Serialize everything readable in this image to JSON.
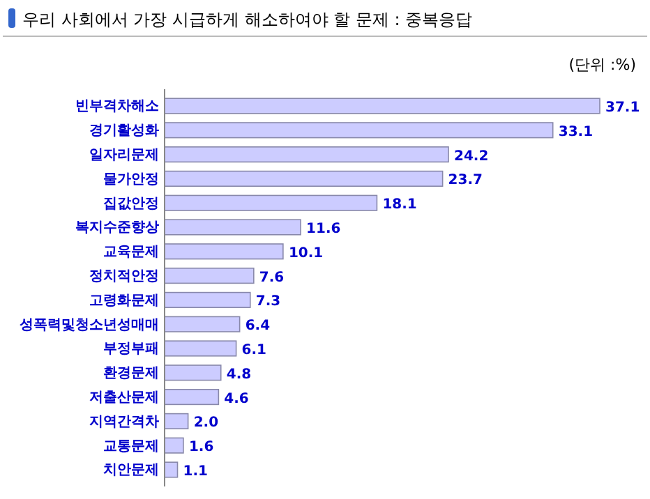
{
  "chart_data": {
    "type": "bar",
    "orientation": "horizontal",
    "title": "우리 사회에서 가장 시급하게 해소하여야 할 문제 : 중복응답",
    "annotations": [
      "(단위 :%)"
    ],
    "categories": [
      "빈부격차해소",
      "경기활성화",
      "일자리문제",
      "물가안정",
      "집값안정",
      "복지수준향상",
      "교육문제",
      "정치적안정",
      "고령화문제",
      "성폭력및청소년성매매",
      "부정부패",
      "환경문제",
      "저출산문제",
      "지역간격차",
      "교통문제",
      "치안문제"
    ],
    "values": [
      37.1,
      33.1,
      24.2,
      23.7,
      18.1,
      11.6,
      10.1,
      7.6,
      7.3,
      6.4,
      6.1,
      4.8,
      4.6,
      2.0,
      1.6,
      1.1
    ],
    "value_labels": [
      "37.1",
      "33.1",
      "24.2",
      "23.7",
      "18.1",
      "11.6",
      "10.1",
      "7.6",
      "7.3",
      "6.4",
      "6.1",
      "4.8",
      "4.6",
      "2.0",
      "1.6",
      "1.1"
    ],
    "color": "#ccccff"
  }
}
